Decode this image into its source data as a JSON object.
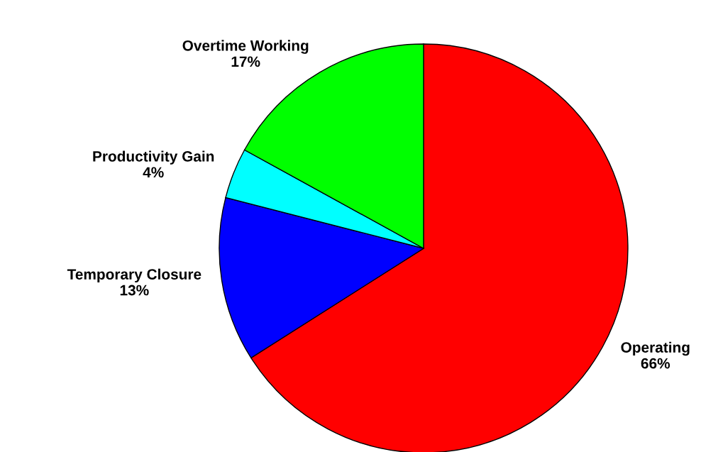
{
  "chart_data": {
    "type": "pie",
    "categories": [
      "Operating",
      "Temporary Closure",
      "Productivity Gain",
      "Overtime Working"
    ],
    "values": [
      66,
      13,
      4,
      17
    ],
    "colors": [
      "#ff0000",
      "#0000ff",
      "#00ffff",
      "#00ff00"
    ],
    "value_labels": [
      "66%",
      "13%",
      "4%",
      "17%"
    ]
  }
}
